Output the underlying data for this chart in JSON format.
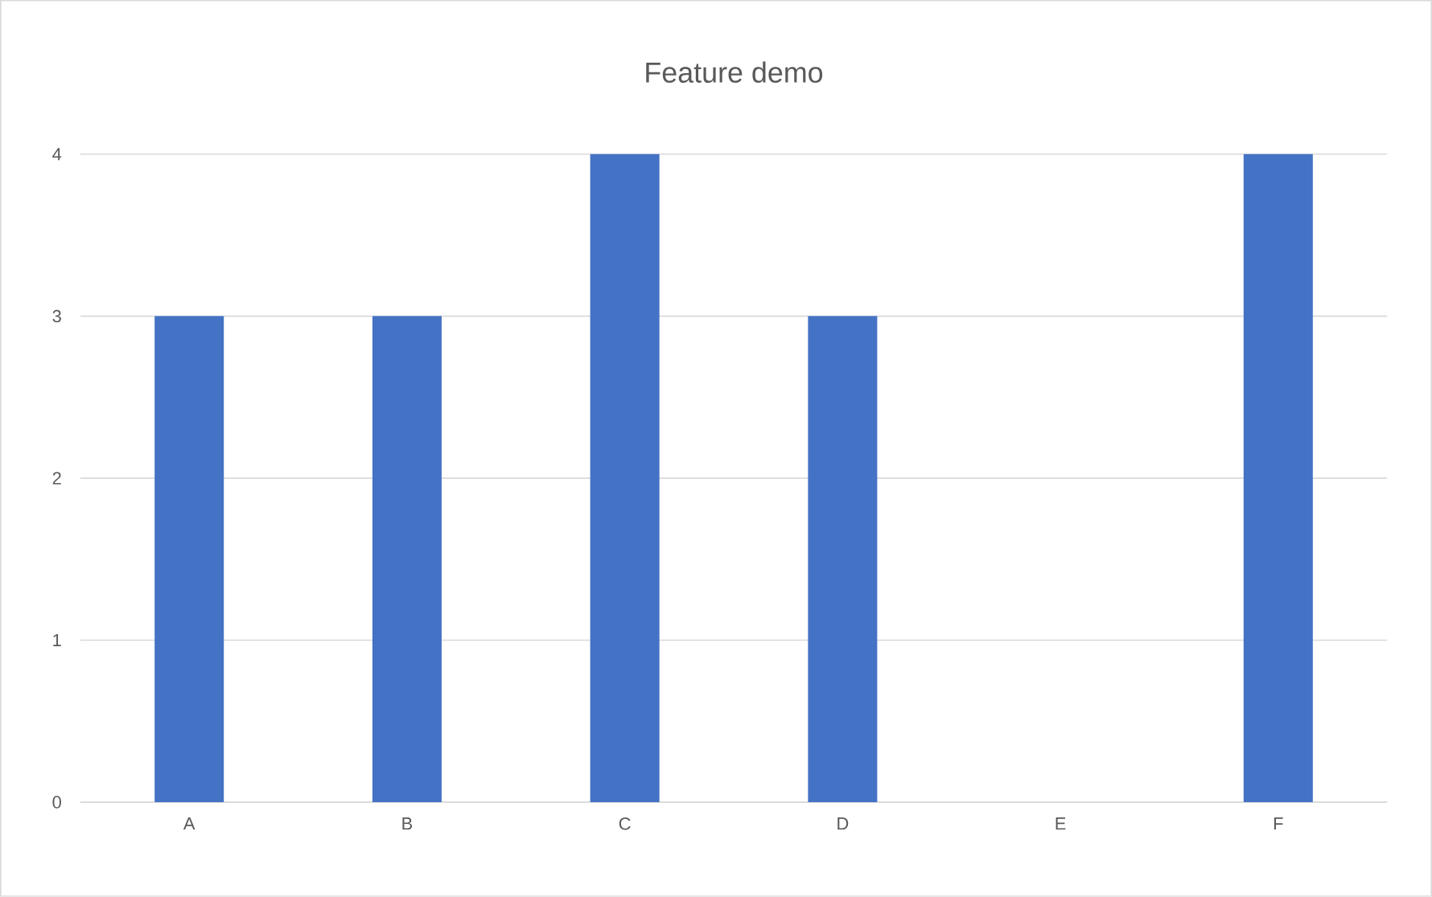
{
  "chart_data": {
    "type": "bar",
    "title": "Feature demo",
    "categories": [
      "A",
      "B",
      "C",
      "D",
      "E",
      "F"
    ],
    "values": [
      3,
      3,
      4,
      3,
      0,
      4
    ],
    "color": "#4472c4",
    "ylim": [
      0,
      4
    ],
    "yticks": [
      0,
      1,
      2,
      3,
      4
    ],
    "grid": "y"
  }
}
